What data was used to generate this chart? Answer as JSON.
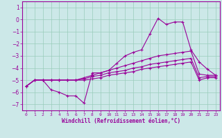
{
  "xlabel": "Windchill (Refroidissement éolien,°C)",
  "background_color": "#cce8e8",
  "grid_color": "#99ccbb",
  "line_color": "#990099",
  "x_data": [
    0,
    1,
    2,
    3,
    4,
    5,
    6,
    7,
    8,
    9,
    10,
    11,
    12,
    13,
    14,
    15,
    16,
    17,
    18,
    19,
    20,
    21,
    22,
    23
  ],
  "line1": [
    -5.5,
    -5.0,
    -5.0,
    -5.8,
    -6.0,
    -6.3,
    -6.3,
    -6.9,
    -4.4,
    -4.4,
    -4.2,
    -3.6,
    -3.0,
    -2.7,
    -2.5,
    -1.2,
    0.1,
    -0.4,
    -0.2,
    -0.2,
    -2.5,
    -3.5,
    -4.1,
    -4.6
  ],
  "line2": [
    -5.5,
    -5.0,
    -5.0,
    -5.0,
    -5.0,
    -5.0,
    -5.0,
    -4.8,
    -4.6,
    -4.4,
    -4.2,
    -4.0,
    -3.8,
    -3.6,
    -3.4,
    -3.2,
    -3.0,
    -2.9,
    -2.8,
    -2.7,
    -2.6,
    -4.5,
    -4.6,
    -4.6
  ],
  "line3": [
    -5.5,
    -5.0,
    -5.0,
    -5.0,
    -5.0,
    -5.0,
    -5.0,
    -4.9,
    -4.7,
    -4.6,
    -4.4,
    -4.3,
    -4.2,
    -4.0,
    -3.9,
    -3.7,
    -3.6,
    -3.5,
    -3.4,
    -3.3,
    -3.2,
    -4.8,
    -4.7,
    -4.7
  ],
  "line4": [
    -5.5,
    -5.0,
    -5.0,
    -5.0,
    -5.0,
    -5.0,
    -5.0,
    -5.0,
    -4.9,
    -4.8,
    -4.6,
    -4.5,
    -4.4,
    -4.3,
    -4.1,
    -4.0,
    -3.9,
    -3.8,
    -3.7,
    -3.6,
    -3.5,
    -5.0,
    -4.8,
    -4.8
  ],
  "ylim": [
    -7.5,
    1.5
  ],
  "xlim": [
    -0.5,
    23.5
  ],
  "yticks": [
    1,
    0,
    -1,
    -2,
    -3,
    -4,
    -5,
    -6,
    -7
  ],
  "xticks": [
    0,
    1,
    2,
    3,
    4,
    5,
    6,
    7,
    8,
    9,
    10,
    11,
    12,
    13,
    14,
    15,
    16,
    17,
    18,
    19,
    20,
    21,
    22,
    23
  ]
}
